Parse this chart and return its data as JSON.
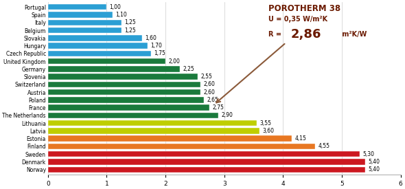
{
  "countries": [
    "Portugal",
    "Spain",
    "Italy",
    "Belgium",
    "Slovakia",
    "Hungary",
    "Czech Republic",
    "United Kingdom",
    "Germany",
    "Slovenia",
    "Switzerland",
    "Austria",
    "Poland",
    "France",
    "The Netherlands",
    "Lithuania",
    "Latvia",
    "Estonia",
    "Finland",
    "Sweden",
    "Denmark",
    "Norway"
  ],
  "values": [
    1.0,
    1.1,
    1.25,
    1.25,
    1.6,
    1.7,
    1.75,
    2.0,
    2.25,
    2.55,
    2.6,
    2.6,
    2.65,
    2.75,
    2.9,
    3.55,
    3.6,
    4.15,
    4.55,
    5.3,
    5.4,
    5.4
  ],
  "labels": [
    "1,00",
    "1,10",
    "1,25",
    "1,25",
    "1,60",
    "1,70",
    "1,75",
    "2,00",
    "2,25",
    "2,55",
    "2,60",
    "2,60",
    "2,65",
    "2,75",
    "2,90",
    "3,55",
    "3,60",
    "4,15",
    "4,55",
    "5,30",
    "5,40",
    "5,40"
  ],
  "colors": [
    "#2B9FD4",
    "#2B9FD4",
    "#2B9FD4",
    "#2B9FD4",
    "#2B9FD4",
    "#2B9FD4",
    "#2B9FD4",
    "#1A7A3C",
    "#1A7A3C",
    "#1A7A3C",
    "#1A7A3C",
    "#1A7A3C",
    "#1A7A3C",
    "#1A7A3C",
    "#1A7A3C",
    "#BFCE00",
    "#BFCE00",
    "#E87722",
    "#E87722",
    "#CC1820",
    "#CC1820",
    "#CC1820"
  ],
  "xlim": [
    0,
    6
  ],
  "xticks": [
    0,
    1,
    2,
    3,
    4,
    5,
    6
  ],
  "bar_height": 0.75,
  "ann1": "POROTHERM 38",
  "ann2": "U = 0,35 W/m²K",
  "ann3": "R = ",
  "ann4": "2,86",
  "ann5": " m²K/W",
  "ann_color": "#6B1A00",
  "arrow_color": "#8B5A3A",
  "background_color": "#FFFFFF",
  "grid_color": "#CCCCCC",
  "label_fontsize": 5.5,
  "tick_fontsize": 6.5,
  "ann1_fontsize": 8.5,
  "ann2_fontsize": 7.0,
  "ann3_fontsize": 7.0,
  "ann4_fontsize": 13.0,
  "ann5_fontsize": 7.0
}
